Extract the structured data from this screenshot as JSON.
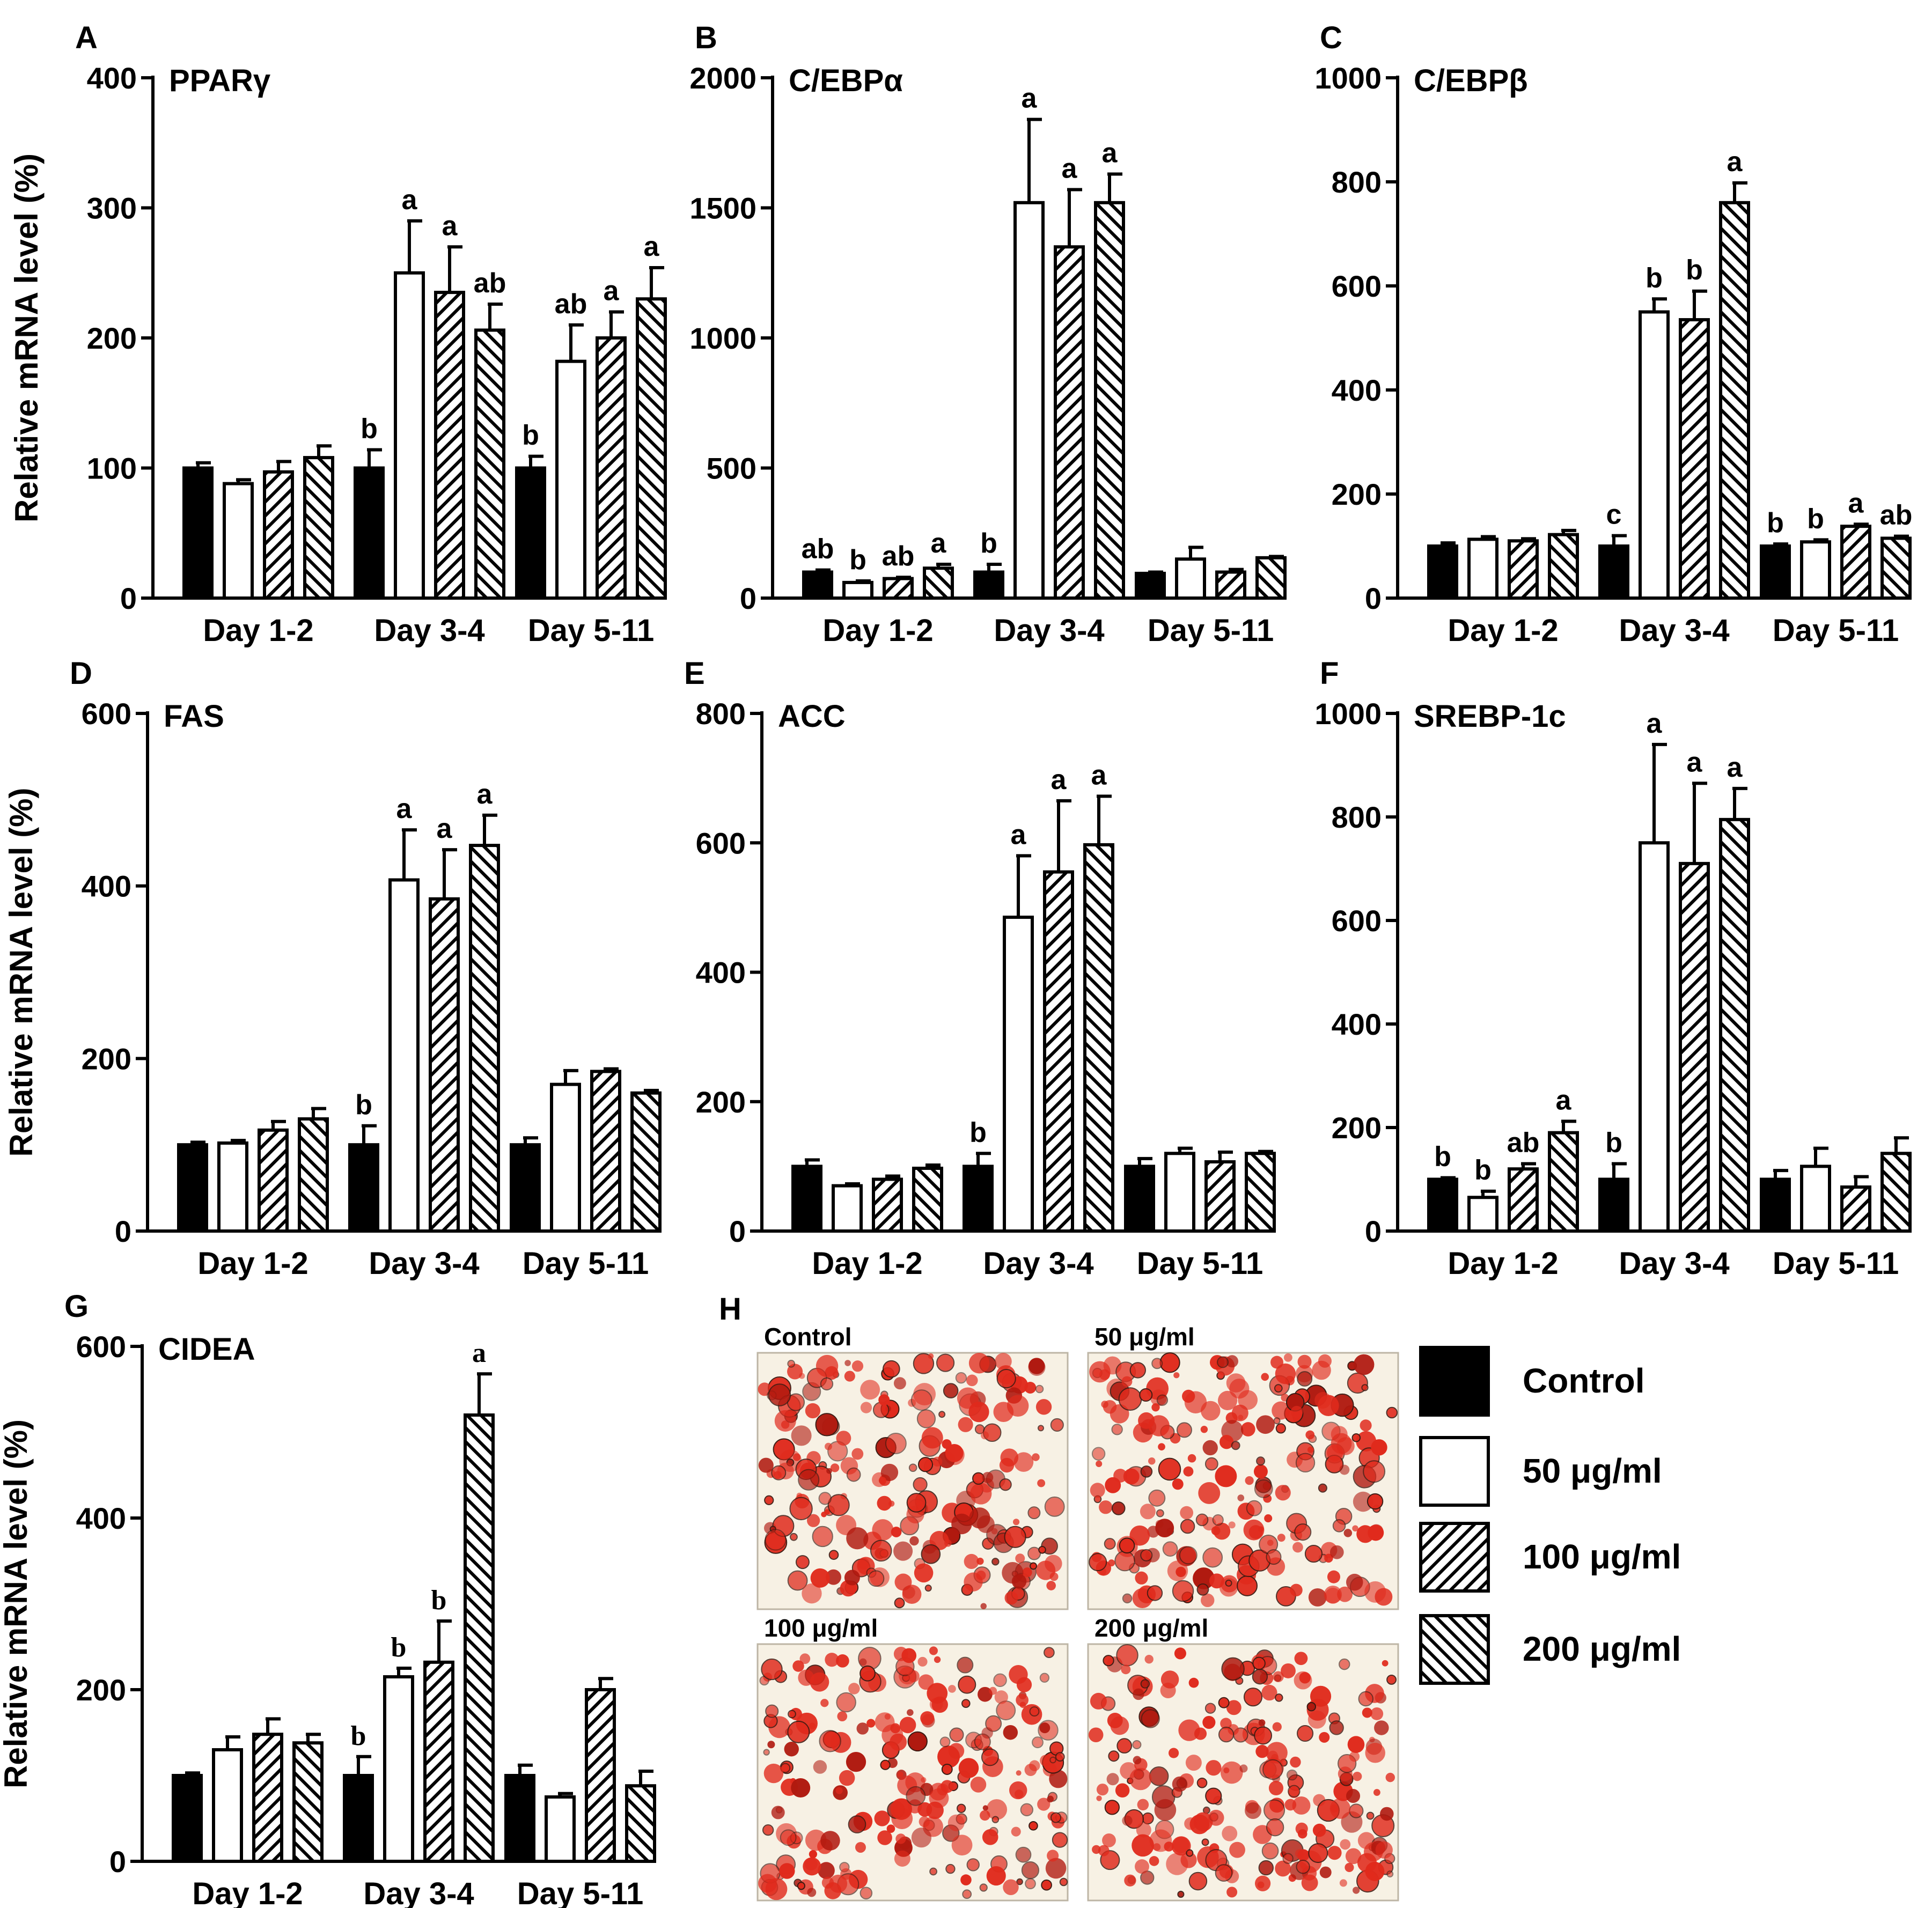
{
  "legend": {
    "entries": [
      {
        "label": "Control",
        "pattern": "solid"
      },
      {
        "label": "50 μg/ml",
        "pattern": "open"
      },
      {
        "label": "100 μg/ml",
        "pattern": "hatch-up"
      },
      {
        "label": "200 μg/ml",
        "pattern": "hatch-down"
      }
    ]
  },
  "micrographs": {
    "panel_letter": "H",
    "captions": [
      "Control",
      "50 μg/ml",
      "100 μg/ml",
      "200 μg/ml"
    ],
    "stain_color": "#e02a1c"
  },
  "chart_data": [
    {
      "panel": "A",
      "type": "bar",
      "title": "PPARγ",
      "ylabel": "Relative mRNA level (%)",
      "ylim": [
        0,
        400
      ],
      "yticks": [
        0,
        100,
        200,
        300,
        400
      ],
      "yticklabels": [
        "0",
        "100",
        "200",
        "300",
        "400"
      ],
      "categories": [
        "Day 1-2",
        "Day 3-4",
        "Day 5-11"
      ],
      "series": [
        {
          "name": "Control",
          "values": [
            100,
            100,
            100
          ],
          "errors": [
            4,
            14,
            9
          ],
          "letters": [
            "",
            "b",
            "b"
          ]
        },
        {
          "name": "50 μg/ml",
          "values": [
            88,
            250,
            182
          ],
          "errors": [
            3,
            40,
            28
          ],
          "letters": [
            "",
            "a",
            "ab"
          ]
        },
        {
          "name": "100 μg/ml",
          "values": [
            97,
            235,
            200
          ],
          "errors": [
            8,
            35,
            20
          ],
          "letters": [
            "",
            "a",
            "a"
          ]
        },
        {
          "name": "200 μg/ml",
          "values": [
            108,
            206,
            230
          ],
          "errors": [
            9,
            20,
            24
          ],
          "letters": [
            "",
            "ab",
            "a"
          ]
        }
      ]
    },
    {
      "panel": "B",
      "type": "bar",
      "title": "C/EBPα",
      "ylabel": "",
      "ylim": [
        0,
        2000
      ],
      "yticks": [
        0,
        500,
        1000,
        1500,
        2000
      ],
      "yticklabels": [
        "0",
        "500",
        "1000",
        "1500",
        "2000"
      ],
      "categories": [
        "Day 1-2",
        "Day 3-4",
        "Day 5-11"
      ],
      "series": [
        {
          "name": "Control",
          "values": [
            100,
            100,
            95
          ],
          "errors": [
            8,
            30,
            5
          ],
          "letters": [
            "ab",
            "b",
            ""
          ]
        },
        {
          "name": "50 μg/ml",
          "values": [
            60,
            1520,
            150
          ],
          "errors": [
            6,
            320,
            45
          ],
          "letters": [
            "b",
            "a",
            ""
          ]
        },
        {
          "name": "100 μg/ml",
          "values": [
            75,
            1350,
            100
          ],
          "errors": [
            5,
            220,
            10
          ],
          "letters": [
            "ab",
            "a",
            ""
          ]
        },
        {
          "name": "200 μg/ml",
          "values": [
            115,
            1520,
            155
          ],
          "errors": [
            15,
            110,
            5
          ],
          "letters": [
            "a",
            "a",
            ""
          ]
        }
      ]
    },
    {
      "panel": "C",
      "type": "bar",
      "title": "C/EBPβ",
      "ylabel": "",
      "ylim": [
        0,
        1000
      ],
      "yticks": [
        0,
        200,
        400,
        600,
        800,
        1000
      ],
      "yticklabels": [
        "0",
        "200",
        "400",
        "600",
        "800",
        "1000"
      ],
      "categories": [
        "Day 1-2",
        "Day 3-4",
        "Day 5-11"
      ],
      "series": [
        {
          "name": "Control",
          "values": [
            100,
            100,
            100
          ],
          "errors": [
            6,
            20,
            4
          ],
          "letters": [
            "",
            "c",
            "b"
          ]
        },
        {
          "name": "50 μg/ml",
          "values": [
            113,
            550,
            108
          ],
          "errors": [
            5,
            25,
            4
          ],
          "letters": [
            "",
            "b",
            "b"
          ]
        },
        {
          "name": "100 μg/ml",
          "values": [
            110,
            535,
            138
          ],
          "errors": [
            4,
            55,
            4
          ],
          "letters": [
            "",
            "b",
            "a"
          ]
        },
        {
          "name": "200 μg/ml",
          "values": [
            122,
            760,
            115
          ],
          "errors": [
            8,
            38,
            4
          ],
          "letters": [
            "",
            "a",
            "ab"
          ]
        }
      ]
    },
    {
      "panel": "D",
      "type": "bar",
      "title": "FAS",
      "ylabel": "Relative mRNA level (%)",
      "ylim": [
        0,
        600
      ],
      "yticks": [
        0,
        200,
        400,
        600
      ],
      "yticklabels": [
        "0",
        "200",
        "400",
        "600"
      ],
      "categories": [
        "Day 1-2",
        "Day 3-4",
        "Day 5-11"
      ],
      "series": [
        {
          "name": "Control",
          "values": [
            100,
            100,
            100
          ],
          "errors": [
            3,
            22,
            8
          ],
          "letters": [
            "",
            "b",
            ""
          ]
        },
        {
          "name": "50 μg/ml",
          "values": [
            102,
            407,
            170
          ],
          "errors": [
            3,
            58,
            16
          ],
          "letters": [
            "",
            "a",
            ""
          ]
        },
        {
          "name": "100 μg/ml",
          "values": [
            117,
            385,
            185
          ],
          "errors": [
            10,
            57,
            3
          ],
          "letters": [
            "",
            "a",
            ""
          ]
        },
        {
          "name": "200 μg/ml",
          "values": [
            130,
            447,
            160
          ],
          "errors": [
            12,
            35,
            3
          ],
          "letters": [
            "",
            "a",
            ""
          ]
        }
      ]
    },
    {
      "panel": "E",
      "type": "bar",
      "title": "ACC",
      "ylabel": "",
      "ylim": [
        0,
        800
      ],
      "yticks": [
        0,
        200,
        400,
        600,
        800
      ],
      "yticklabels": [
        "0",
        "200",
        "400",
        "600",
        "800"
      ],
      "categories": [
        "Day 1-2",
        "Day 3-4",
        "Day 5-11"
      ],
      "series": [
        {
          "name": "Control",
          "values": [
            100,
            100,
            100
          ],
          "errors": [
            10,
            20,
            12
          ],
          "letters": [
            "",
            "b",
            ""
          ]
        },
        {
          "name": "50 μg/ml",
          "values": [
            70,
            485,
            120
          ],
          "errors": [
            3,
            95,
            8
          ],
          "letters": [
            "",
            "a",
            ""
          ]
        },
        {
          "name": "100 μg/ml",
          "values": [
            80,
            555,
            107
          ],
          "errors": [
            5,
            110,
            15
          ],
          "letters": [
            "",
            "a",
            ""
          ]
        },
        {
          "name": "200 μg/ml",
          "values": [
            97,
            597,
            120
          ],
          "errors": [
            5,
            75,
            3
          ],
          "letters": [
            "",
            "a",
            ""
          ]
        }
      ]
    },
    {
      "panel": "F",
      "type": "bar",
      "title": "SREBP-1c",
      "ylabel": "",
      "ylim": [
        0,
        1000
      ],
      "yticks": [
        0,
        200,
        400,
        600,
        800,
        1000
      ],
      "yticklabels": [
        "0",
        "200",
        "400",
        "600",
        "800",
        "1000"
      ],
      "categories": [
        "Day 1-2",
        "Day 3-4",
        "Day 5-11"
      ],
      "series": [
        {
          "name": "Control",
          "values": [
            100,
            100,
            100
          ],
          "errors": [
            3,
            30,
            17
          ],
          "letters": [
            "b",
            "b",
            ""
          ]
        },
        {
          "name": "50 μg/ml",
          "values": [
            65,
            750,
            125
          ],
          "errors": [
            12,
            190,
            35
          ],
          "letters": [
            "b",
            "a",
            ""
          ]
        },
        {
          "name": "100 μg/ml",
          "values": [
            120,
            710,
            85
          ],
          "errors": [
            10,
            155,
            20
          ],
          "letters": [
            "ab",
            "a",
            ""
          ]
        },
        {
          "name": "200 μg/ml",
          "values": [
            190,
            795,
            150
          ],
          "errors": [
            22,
            60,
            30
          ],
          "letters": [
            "a",
            "a",
            ""
          ]
        }
      ]
    },
    {
      "panel": "G",
      "type": "bar",
      "title": "CIDEA",
      "ylabel": "Relative mRNA level (%)",
      "ylim": [
        0,
        600
      ],
      "yticks": [
        0,
        200,
        400,
        600
      ],
      "yticklabels": [
        "0",
        "200",
        "400",
        "600"
      ],
      "categories": [
        "Day 1-2",
        "Day 3-4",
        "Day 5-11"
      ],
      "series": [
        {
          "name": "Control",
          "values": [
            100,
            100,
            100
          ],
          "errors": [
            3,
            22,
            12
          ],
          "letters": [
            "",
            "b",
            ""
          ]
        },
        {
          "name": "50 μg/ml",
          "values": [
            130,
            215,
            75
          ],
          "errors": [
            15,
            10,
            4
          ],
          "letters": [
            "",
            "b",
            ""
          ]
        },
        {
          "name": "100 μg/ml",
          "values": [
            148,
            232,
            200
          ],
          "errors": [
            18,
            48,
            13
          ],
          "letters": [
            "",
            "b",
            ""
          ]
        },
        {
          "name": "200 μg/ml",
          "values": [
            138,
            520,
            88
          ],
          "errors": [
            10,
            48,
            17
          ],
          "letters": [
            "",
            "a",
            ""
          ]
        }
      ]
    }
  ]
}
